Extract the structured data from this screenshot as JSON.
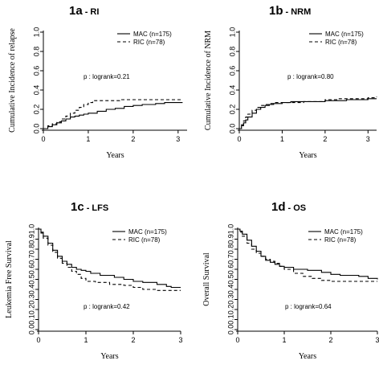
{
  "chart_data": [
    {
      "type": "line",
      "panel_title": "1a",
      "panel_subtitle": "- RI",
      "xlabel": "Years",
      "ylabel": "Cumulative Incidence of relapse",
      "xlim": [
        0,
        3.2
      ],
      "ylim": [
        0,
        1.0
      ],
      "xticks": [
        "0",
        "1",
        "2",
        "3"
      ],
      "yticks": [
        "0.0",
        "0.2",
        "0.4",
        "0.6",
        "0.8",
        "1.0"
      ],
      "legend": {
        "position": "top-right",
        "entries": [
          "MAC (n=175)",
          "RIC (n=78)"
        ]
      },
      "annotation": "p : logrank=0.21",
      "series": [
        {
          "name": "MAC (n=175)",
          "style": "solid",
          "step": true,
          "points": [
            [
              0,
              0
            ],
            [
              0.1,
              0.02
            ],
            [
              0.2,
              0.04
            ],
            [
              0.3,
              0.06
            ],
            [
              0.4,
              0.08
            ],
            [
              0.5,
              0.1
            ],
            [
              0.6,
              0.12
            ],
            [
              0.7,
              0.13
            ],
            [
              0.8,
              0.14
            ],
            [
              0.9,
              0.15
            ],
            [
              1.0,
              0.16
            ],
            [
              1.2,
              0.18
            ],
            [
              1.4,
              0.2
            ],
            [
              1.6,
              0.21
            ],
            [
              1.8,
              0.23
            ],
            [
              2.0,
              0.24
            ],
            [
              2.2,
              0.25
            ],
            [
              2.5,
              0.26
            ],
            [
              2.7,
              0.27
            ],
            [
              3.1,
              0.27
            ]
          ]
        },
        {
          "name": "RIC (n=78)",
          "style": "dashed",
          "step": true,
          "points": [
            [
              0,
              0
            ],
            [
              0.1,
              0.03
            ],
            [
              0.2,
              0.05
            ],
            [
              0.3,
              0.07
            ],
            [
              0.4,
              0.1
            ],
            [
              0.5,
              0.13
            ],
            [
              0.6,
              0.16
            ],
            [
              0.7,
              0.19
            ],
            [
              0.8,
              0.22
            ],
            [
              0.9,
              0.25
            ],
            [
              1.0,
              0.27
            ],
            [
              1.1,
              0.29
            ],
            [
              1.3,
              0.29
            ],
            [
              1.7,
              0.3
            ],
            [
              3.1,
              0.3
            ]
          ]
        }
      ]
    },
    {
      "type": "line",
      "panel_title": "1b",
      "panel_subtitle": "- NRM",
      "xlabel": "Years",
      "ylabel": "Cumulative Incidence of NRM",
      "xlim": [
        0,
        3.2
      ],
      "ylim": [
        0,
        1.0
      ],
      "xticks": [
        "0",
        "1",
        "2",
        "3"
      ],
      "yticks": [
        "0.0",
        "0.2",
        "0.4",
        "0.6",
        "0.8",
        "1.0"
      ],
      "legend": {
        "position": "top-right",
        "entries": [
          "MAC (n=175)",
          "RIC (n=78)"
        ]
      },
      "annotation": "p : logrank=0.80",
      "series": [
        {
          "name": "MAC (n=175)",
          "style": "solid",
          "step": true,
          "points": [
            [
              0,
              0
            ],
            [
              0.05,
              0.03
            ],
            [
              0.1,
              0.06
            ],
            [
              0.15,
              0.09
            ],
            [
              0.2,
              0.12
            ],
            [
              0.3,
              0.16
            ],
            [
              0.4,
              0.2
            ],
            [
              0.5,
              0.22
            ],
            [
              0.6,
              0.24
            ],
            [
              0.7,
              0.25
            ],
            [
              0.8,
              0.26
            ],
            [
              1.0,
              0.27
            ],
            [
              1.2,
              0.28
            ],
            [
              1.5,
              0.28
            ],
            [
              2.0,
              0.29
            ],
            [
              2.5,
              0.3
            ],
            [
              3.0,
              0.31
            ],
            [
              3.2,
              0.31
            ]
          ]
        },
        {
          "name": "RIC (n=78)",
          "style": "dashed",
          "step": true,
          "points": [
            [
              0,
              0
            ],
            [
              0.05,
              0.04
            ],
            [
              0.1,
              0.08
            ],
            [
              0.15,
              0.12
            ],
            [
              0.2,
              0.15
            ],
            [
              0.3,
              0.19
            ],
            [
              0.4,
              0.22
            ],
            [
              0.5,
              0.24
            ],
            [
              0.6,
              0.25
            ],
            [
              0.7,
              0.26
            ],
            [
              0.8,
              0.27
            ],
            [
              1.0,
              0.27
            ],
            [
              1.5,
              0.28
            ],
            [
              2.0,
              0.3
            ],
            [
              2.3,
              0.31
            ],
            [
              3.0,
              0.32
            ],
            [
              3.2,
              0.33
            ]
          ]
        }
      ]
    },
    {
      "type": "line",
      "panel_title": "1c",
      "panel_subtitle": "- LFS",
      "xlabel": "Years",
      "ylabel": "Leukemia Free Survival",
      "xlim": [
        0,
        3
      ],
      "ylim": [
        0,
        1.0
      ],
      "xticks": [
        "0",
        "1",
        "2",
        "3"
      ],
      "yticks": [
        "0.0",
        "0.1",
        "0.2",
        "0.3",
        "0.4",
        "0.5",
        "0.6",
        "0.7",
        "0.8",
        "0.9",
        "1.0"
      ],
      "legend": {
        "position": "top-right",
        "entries": [
          "MAC (n=175)",
          "RIC (n=78)"
        ]
      },
      "annotation": "p : logrank=0.42",
      "series": [
        {
          "name": "MAC (n=175)",
          "style": "solid",
          "step": true,
          "points": [
            [
              0,
              1.0
            ],
            [
              0.05,
              0.97
            ],
            [
              0.1,
              0.93
            ],
            [
              0.2,
              0.86
            ],
            [
              0.3,
              0.79
            ],
            [
              0.4,
              0.73
            ],
            [
              0.5,
              0.68
            ],
            [
              0.6,
              0.65
            ],
            [
              0.7,
              0.62
            ],
            [
              0.8,
              0.6
            ],
            [
              0.9,
              0.59
            ],
            [
              1.0,
              0.58
            ],
            [
              1.1,
              0.56
            ],
            [
              1.3,
              0.54
            ],
            [
              1.6,
              0.52
            ],
            [
              1.8,
              0.5
            ],
            [
              2.0,
              0.48
            ],
            [
              2.2,
              0.47
            ],
            [
              2.5,
              0.45
            ],
            [
              2.7,
              0.43
            ],
            [
              2.8,
              0.42
            ],
            [
              3.0,
              0.42
            ]
          ]
        },
        {
          "name": "RIC (n=78)",
          "style": "dashed",
          "step": true,
          "points": [
            [
              0,
              1.0
            ],
            [
              0.05,
              0.96
            ],
            [
              0.1,
              0.91
            ],
            [
              0.2,
              0.84
            ],
            [
              0.3,
              0.77
            ],
            [
              0.4,
              0.71
            ],
            [
              0.5,
              0.66
            ],
            [
              0.6,
              0.62
            ],
            [
              0.7,
              0.58
            ],
            [
              0.8,
              0.55
            ],
            [
              0.9,
              0.51
            ],
            [
              1.0,
              0.48
            ],
            [
              1.2,
              0.47
            ],
            [
              1.5,
              0.45
            ],
            [
              1.8,
              0.44
            ],
            [
              2.0,
              0.42
            ],
            [
              2.2,
              0.4
            ],
            [
              2.5,
              0.39
            ],
            [
              3.0,
              0.39
            ]
          ]
        }
      ]
    },
    {
      "type": "line",
      "panel_title": "1d",
      "panel_subtitle": "- OS",
      "xlabel": "Years",
      "ylabel": "Overall Survival",
      "xlim": [
        0,
        3
      ],
      "ylim": [
        0,
        1.0
      ],
      "xticks": [
        "0",
        "1",
        "2",
        "3"
      ],
      "yticks": [
        "0.0",
        "0.1",
        "0.2",
        "0.3",
        "0.4",
        "0.5",
        "0.6",
        "0.7",
        "0.8",
        "0.9",
        "1.0"
      ],
      "legend": {
        "position": "top-right",
        "entries": [
          "MAC (n=175)",
          "RIC (n=78)"
        ]
      },
      "annotation": "p : logrank=0.64",
      "series": [
        {
          "name": "MAC (n=175)",
          "style": "solid",
          "step": true,
          "points": [
            [
              0,
              1.0
            ],
            [
              0.05,
              0.98
            ],
            [
              0.1,
              0.95
            ],
            [
              0.2,
              0.89
            ],
            [
              0.3,
              0.83
            ],
            [
              0.4,
              0.78
            ],
            [
              0.5,
              0.73
            ],
            [
              0.6,
              0.69
            ],
            [
              0.7,
              0.67
            ],
            [
              0.8,
              0.65
            ],
            [
              0.9,
              0.63
            ],
            [
              1.0,
              0.62
            ],
            [
              1.2,
              0.6
            ],
            [
              1.5,
              0.59
            ],
            [
              1.8,
              0.57
            ],
            [
              2.0,
              0.55
            ],
            [
              2.2,
              0.54
            ],
            [
              2.6,
              0.53
            ],
            [
              2.8,
              0.51
            ],
            [
              3.0,
              0.5
            ]
          ]
        },
        {
          "name": "RIC (n=78)",
          "style": "dashed",
          "step": true,
          "points": [
            [
              0,
              1.0
            ],
            [
              0.05,
              0.97
            ],
            [
              0.1,
              0.93
            ],
            [
              0.2,
              0.86
            ],
            [
              0.3,
              0.8
            ],
            [
              0.4,
              0.76
            ],
            [
              0.5,
              0.73
            ],
            [
              0.6,
              0.7
            ],
            [
              0.7,
              0.68
            ],
            [
              0.8,
              0.66
            ],
            [
              0.9,
              0.63
            ],
            [
              1.0,
              0.6
            ],
            [
              1.2,
              0.56
            ],
            [
              1.4,
              0.53
            ],
            [
              1.6,
              0.51
            ],
            [
              1.8,
              0.49
            ],
            [
              2.0,
              0.48
            ],
            [
              3.0,
              0.48
            ]
          ]
        }
      ]
    }
  ]
}
